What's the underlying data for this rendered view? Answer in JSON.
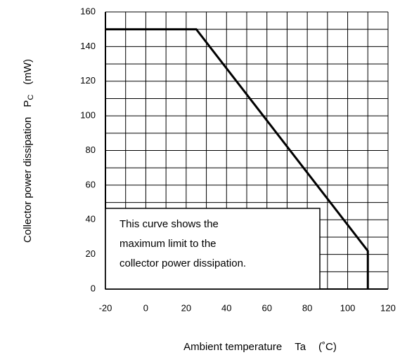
{
  "chart_data": {
    "type": "line",
    "x_label": {
      "text": "Ambient temperature",
      "symbol": "Ta",
      "unit": "(˚C)"
    },
    "y_label": {
      "text": "Collector power dissipation",
      "symbol": "P",
      "subscript": "C",
      "unit": "(mW)"
    },
    "annotation": [
      "This curve shows the",
      "maximum limit to the",
      "collector power dissipation."
    ],
    "series": [
      {
        "name": "Pc",
        "color": "#000000",
        "x": [
          -20,
          25,
          110,
          110
        ],
        "values": [
          150,
          150,
          22,
          0
        ]
      }
    ],
    "xlim": [
      -20,
      120
    ],
    "xticks": [
      -20,
      0,
      20,
      40,
      60,
      80,
      100,
      120
    ],
    "ylim": [
      0,
      160
    ],
    "yticks": [
      0,
      20,
      40,
      60,
      80,
      100,
      120,
      140,
      160
    ],
    "grid": true,
    "minor_grid": true
  }
}
